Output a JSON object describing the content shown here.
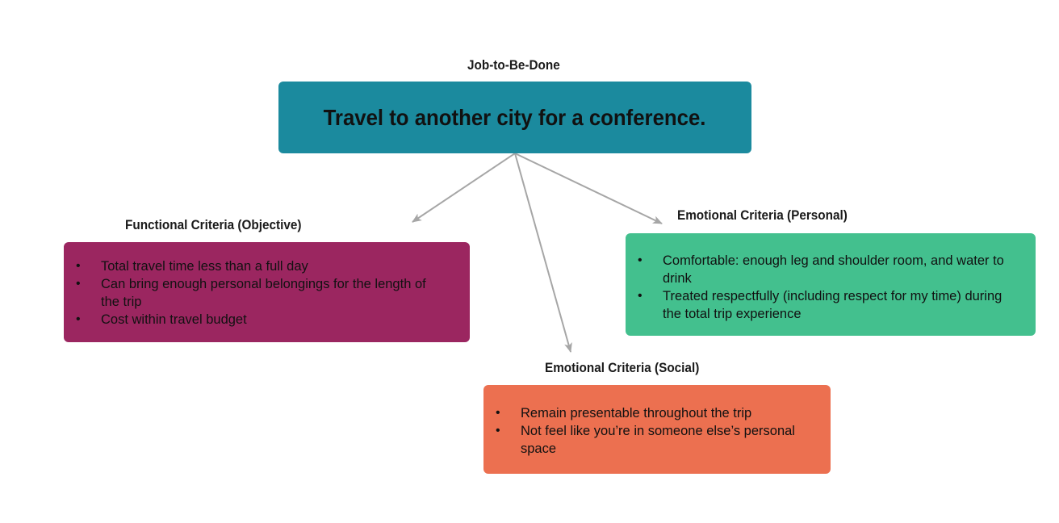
{
  "job": {
    "heading": "Job-to-Be-Done",
    "title": "Travel to another city for a conference.",
    "color": "#1b8a9e"
  },
  "functional": {
    "heading": "Functional Criteria (Objective)",
    "color": "#9b2660",
    "items": [
      "Total travel time less than a full day",
      "Can bring enough personal belongings for the length of the trip",
      "Cost within travel budget"
    ]
  },
  "personal": {
    "heading": "Emotional Criteria (Personal)",
    "color": "#43c08e",
    "items": [
      "Comfortable: enough leg and shoulder room, and water to drink",
      "Treated respectfully (including respect for my time) during the total trip experience"
    ]
  },
  "social": {
    "heading": "Emotional Criteria (Social)",
    "color": "#ec7050",
    "items": [
      "Remain presentable throughout the trip",
      "Not feel like you’re in someone else’s personal space"
    ]
  },
  "arrow_color": "#a6a6a6"
}
